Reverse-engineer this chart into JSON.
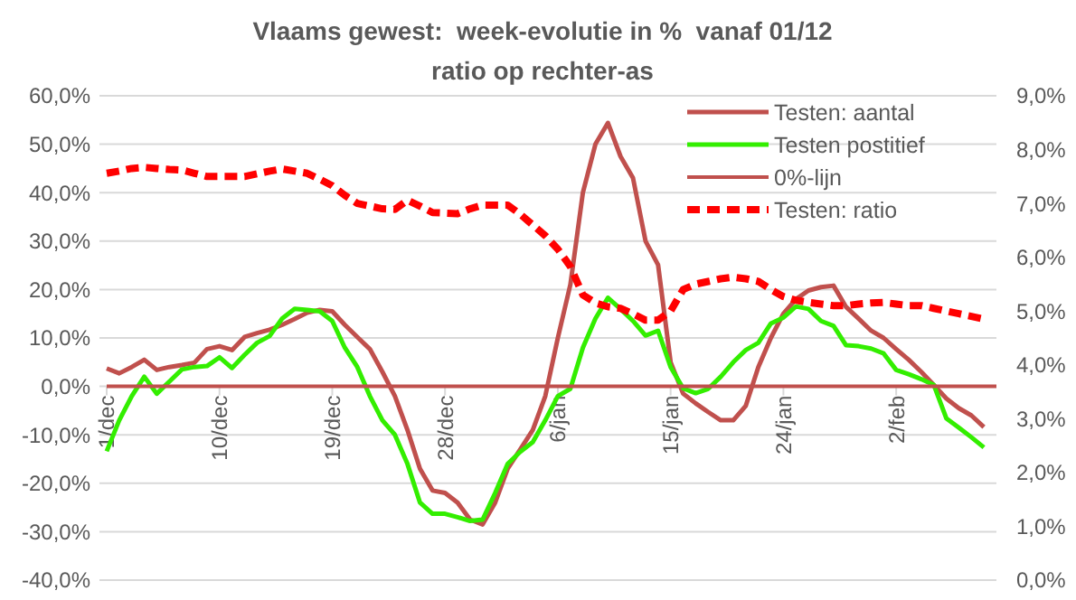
{
  "chart_data": {
    "type": "line",
    "title": "Vlaams gewest:  week-evolutie in %  vanaf 01/12",
    "subtitle": "ratio op rechter-as",
    "categories": [
      "1/dec",
      null,
      null,
      null,
      null,
      null,
      null,
      null,
      null,
      "10/dec",
      null,
      null,
      null,
      null,
      null,
      null,
      null,
      null,
      "19/dec",
      null,
      null,
      null,
      null,
      null,
      null,
      null,
      null,
      "28/dec",
      null,
      null,
      null,
      null,
      null,
      null,
      null,
      null,
      "6/jan",
      null,
      null,
      null,
      null,
      null,
      null,
      null,
      null,
      "15/jan",
      null,
      null,
      null,
      null,
      null,
      null,
      null,
      null,
      "24/jan",
      null,
      null,
      null,
      null,
      null,
      null,
      null,
      null,
      "2/feb",
      null,
      null,
      null,
      null,
      null,
      null,
      null,
      null
    ],
    "series": [
      {
        "name": "Testen: aantal",
        "color": "#c0504d",
        "values": [
          3.7,
          2.7,
          4,
          5.5,
          3.4,
          4,
          4.4,
          4.9,
          7.7,
          8.3,
          7.5,
          10.2,
          11,
          11.7,
          12.7,
          13.9,
          15.2,
          15.8,
          15.5,
          12.7,
          10.2,
          7.7,
          3,
          -2,
          -9,
          -17,
          -21.5,
          -22,
          -24,
          -27.5,
          -28.5,
          -24,
          -17,
          -13,
          -9,
          -2,
          10,
          21,
          40,
          50,
          54.4,
          47.5,
          43,
          30,
          25.1,
          5,
          -1.5,
          -3.5,
          -5.3,
          -7,
          -7,
          -4,
          4,
          10,
          15,
          18,
          19.8,
          20.5,
          20.8,
          16.4,
          14,
          11.5,
          10,
          7.7,
          5.5,
          3,
          0.3,
          -2.5,
          -4.5,
          -6,
          -8.4,
          null
        ]
      },
      {
        "name": "Testen postitief",
        "color": "#33ee00",
        "values": [
          -13.4,
          -7,
          -2,
          2,
          -1.5,
          1,
          3.5,
          4,
          4.2,
          6,
          3.8,
          6.5,
          9,
          10.4,
          14,
          16,
          15.8,
          15.5,
          13.5,
          8,
          4,
          -2,
          -7,
          -10,
          -16,
          -24,
          -26.3,
          -26.3,
          -27,
          -27.8,
          -27.5,
          -22,
          -16,
          -13.5,
          -11.5,
          -7,
          -2,
          -0.5,
          8,
          14,
          18.3,
          16,
          13.5,
          10.5,
          11.5,
          4,
          -0.4,
          -1.4,
          -0.5,
          2,
          5,
          7.5,
          9,
          13,
          14.2,
          16.5,
          16,
          13.5,
          12.5,
          8.5,
          8.3,
          7.8,
          6.8,
          3.4,
          2.5,
          1.5,
          0.3,
          -6.6,
          -8.5,
          -10.5,
          -12.6,
          null
        ]
      },
      {
        "name": "0%-lijn",
        "color": "#c0504d",
        "values": [
          0,
          0,
          0,
          0,
          0,
          0,
          0,
          0,
          0,
          0,
          0,
          0,
          0,
          0,
          0,
          0,
          0,
          0,
          0,
          0,
          0,
          0,
          0,
          0,
          0,
          0,
          0,
          0,
          0,
          0,
          0,
          0,
          0,
          0,
          0,
          0,
          0,
          0,
          0,
          0,
          0,
          0,
          0,
          0,
          0,
          0,
          0,
          0,
          0,
          0,
          0,
          0,
          0,
          0,
          0,
          0,
          0,
          0,
          0,
          0,
          0,
          0,
          0,
          0,
          0,
          0,
          0,
          0,
          0,
          0,
          0,
          0
        ]
      },
      {
        "name": "Testen: ratio",
        "color": "#ff0000",
        "axis": "y2",
        "line_style": "dashed",
        "values": [
          7.56,
          7.6,
          7.65,
          7.67,
          7.65,
          7.63,
          7.62,
          7.56,
          7.5,
          7.5,
          7.5,
          7.5,
          7.55,
          7.6,
          7.64,
          7.6,
          7.56,
          7.45,
          7.33,
          7.15,
          7,
          6.95,
          6.9,
          6.89,
          7.06,
          6.95,
          6.83,
          6.82,
          6.81,
          6.9,
          6.97,
          6.97,
          6.97,
          6.8,
          6.6,
          6.4,
          6.15,
          5.83,
          5.3,
          5.15,
          5.08,
          5.05,
          4.95,
          4.83,
          4.83,
          5,
          5.4,
          5.5,
          5.55,
          5.6,
          5.63,
          5.6,
          5.55,
          5.4,
          5.27,
          5.2,
          5.16,
          5.13,
          5.1,
          5.1,
          5.13,
          5.15,
          5.16,
          5.13,
          5.1,
          5.1,
          5.05,
          5,
          4.95,
          4.9,
          4.85,
          null
        ]
      }
    ],
    "ylim": [
      -40,
      60
    ],
    "yticks": [
      {
        "value": -40,
        "label": "-40,0%"
      },
      {
        "value": -30,
        "label": "-30,0%"
      },
      {
        "value": -20,
        "label": "-20,0%"
      },
      {
        "value": -10,
        "label": "-10,0%"
      },
      {
        "value": 0,
        "label": "0,0%"
      },
      {
        "value": 10,
        "label": "10,0%"
      },
      {
        "value": 20,
        "label": "20,0%"
      },
      {
        "value": 30,
        "label": "30,0%"
      },
      {
        "value": 40,
        "label": "40,0%"
      },
      {
        "value": 50,
        "label": "50,0%"
      },
      {
        "value": 60,
        "label": "60,0%"
      }
    ],
    "y2lim": [
      0,
      9
    ],
    "y2ticks": [
      {
        "value": 0,
        "label": "0,0%"
      },
      {
        "value": 1,
        "label": "1,0%"
      },
      {
        "value": 2,
        "label": "2,0%"
      },
      {
        "value": 3,
        "label": "3,0%"
      },
      {
        "value": 4,
        "label": "4,0%"
      },
      {
        "value": 5,
        "label": "5,0%"
      },
      {
        "value": 6,
        "label": "6,0%"
      },
      {
        "value": 7,
        "label": "7,0%"
      },
      {
        "value": 8,
        "label": "8,0%"
      },
      {
        "value": 9,
        "label": "9,0%"
      }
    ],
    "grid": "y",
    "legend": "top right",
    "marker": "none"
  }
}
